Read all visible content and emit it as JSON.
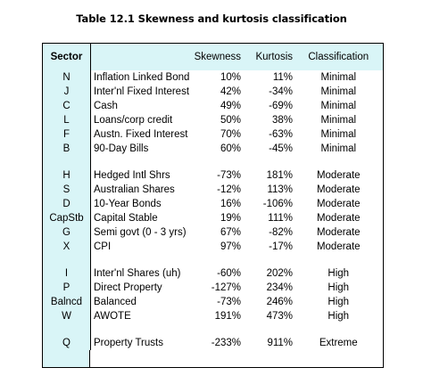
{
  "caption": "Table 12.1  Skewness and kurtosis classification",
  "headers": {
    "sector": "Sector",
    "name": "",
    "skewness": "Skewness",
    "kurtosis": "Kurtosis",
    "classification": "Classification"
  },
  "groups": [
    {
      "rows": [
        {
          "code": "N",
          "name": "Inflation Linked Bond",
          "skewness": "10%",
          "kurtosis": "11%",
          "classification": "Minimal"
        },
        {
          "code": "J",
          "name": "Inter'nl Fixed Interest",
          "skewness": "42%",
          "kurtosis": "-34%",
          "classification": "Minimal"
        },
        {
          "code": "C",
          "name": "Cash",
          "skewness": "49%",
          "kurtosis": "-69%",
          "classification": "Minimal"
        },
        {
          "code": "L",
          "name": "Loans/corp credit",
          "skewness": "50%",
          "kurtosis": "38%",
          "classification": "Minimal"
        },
        {
          "code": "F",
          "name": "Austn. Fixed Interest",
          "skewness": "70%",
          "kurtosis": "-63%",
          "classification": "Minimal"
        },
        {
          "code": "B",
          "name": "90-Day Bills",
          "skewness": "60%",
          "kurtosis": "-45%",
          "classification": "Minimal"
        }
      ]
    },
    {
      "rows": [
        {
          "code": "H",
          "name": "Hedged Intl Shrs",
          "skewness": "-73%",
          "kurtosis": "181%",
          "classification": "Moderate"
        },
        {
          "code": "S",
          "name": "Australian Shares",
          "skewness": "-12%",
          "kurtosis": "113%",
          "classification": "Moderate"
        },
        {
          "code": "D",
          "name": "10-Year Bonds",
          "skewness": "16%",
          "kurtosis": "-106%",
          "classification": "Moderate"
        },
        {
          "code": "CapStb",
          "name": "Capital Stable",
          "skewness": "19%",
          "kurtosis": "111%",
          "classification": "Moderate"
        },
        {
          "code": "G",
          "name": "Semi govt (0 - 3 yrs)",
          "skewness": "67%",
          "kurtosis": "-82%",
          "classification": "Moderate"
        },
        {
          "code": "X",
          "name": "CPI",
          "skewness": "97%",
          "kurtosis": "-17%",
          "classification": "Moderate"
        }
      ]
    },
    {
      "rows": [
        {
          "code": "I",
          "name": "Inter'nl Shares (uh)",
          "skewness": "-60%",
          "kurtosis": "202%",
          "classification": "High"
        },
        {
          "code": "P",
          "name": "Direct Property",
          "skewness": "-127%",
          "kurtosis": "234%",
          "classification": "High"
        },
        {
          "code": "Balncd",
          "name": "Balanced",
          "skewness": "-73%",
          "kurtosis": "246%",
          "classification": "High"
        },
        {
          "code": "W",
          "name": "AWOTE",
          "skewness": "191%",
          "kurtosis": "473%",
          "classification": "High"
        }
      ]
    },
    {
      "rows": [
        {
          "code": "Q",
          "name": "Property Trusts",
          "skewness": "-233%",
          "kurtosis": "911%",
          "classification": "Extreme"
        }
      ]
    }
  ],
  "colors": {
    "sector_band": "#d9f5f7",
    "border": "#000000"
  }
}
